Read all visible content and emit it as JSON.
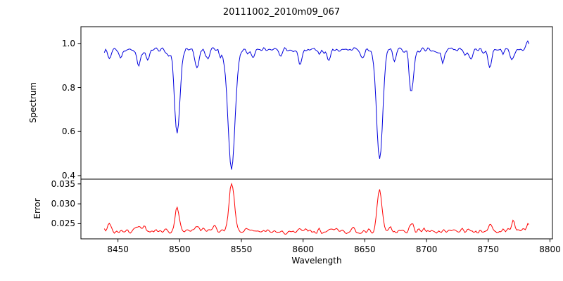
{
  "chart_data": {
    "type": "line",
    "title": "20111002_2010m09_067",
    "xlabel": "Wavelength",
    "xlim": [
      8420,
      8802
    ],
    "xticks": [
      8450,
      8500,
      8550,
      8600,
      8650,
      8700,
      8750,
      8800
    ],
    "x_start": 8439,
    "x_end": 8783,
    "x_step": 1,
    "panels": [
      {
        "name": "spectrum",
        "ylabel": "Spectrum",
        "color": "#0000dd",
        "ylim": [
          0.384,
          1.076
        ],
        "yticks": [
          0.4,
          0.6,
          0.8,
          1.0
        ],
        "ytick_labels": [
          "0.4",
          "0.6",
          "0.8",
          "1.0"
        ],
        "baseline": 0.972,
        "noise": 0.016,
        "features": [
          {
            "center": 8443,
            "depth": 0.045,
            "sigma": 1.2
          },
          {
            "center": 8452,
            "depth": 0.04,
            "sigma": 1.1
          },
          {
            "center": 8467,
            "depth": 0.08,
            "sigma": 1.4
          },
          {
            "center": 8474,
            "depth": 0.05,
            "sigma": 1.2
          },
          {
            "center": 8498,
            "depth": 0.39,
            "sigma": 2.0
          },
          {
            "center": 8514,
            "depth": 0.1,
            "sigma": 1.4
          },
          {
            "center": 8542,
            "depth": 0.57,
            "sigma": 2.8
          },
          {
            "center": 8560,
            "depth": 0.035,
            "sigma": 1.2
          },
          {
            "center": 8582,
            "depth": 0.04,
            "sigma": 1.2
          },
          {
            "center": 8598,
            "depth": 0.05,
            "sigma": 1.2
          },
          {
            "center": 8621,
            "depth": 0.04,
            "sigma": 1.2
          },
          {
            "center": 8648,
            "depth": 0.05,
            "sigma": 1.2
          },
          {
            "center": 8662,
            "depth": 0.52,
            "sigma": 2.4
          },
          {
            "center": 8674,
            "depth": 0.05,
            "sigma": 1.2
          },
          {
            "center": 8688,
            "depth": 0.19,
            "sigma": 1.5
          },
          {
            "center": 8713,
            "depth": 0.04,
            "sigma": 1.2
          },
          {
            "center": 8736,
            "depth": 0.04,
            "sigma": 1.2
          },
          {
            "center": 8751,
            "depth": 0.085,
            "sigma": 1.4
          },
          {
            "center": 8769,
            "depth": 0.06,
            "sigma": 1.2
          },
          {
            "center": 8782,
            "depth": -0.065,
            "sigma": 1.0
          }
        ]
      },
      {
        "name": "error",
        "ylabel": "Error",
        "color": "#ff0000",
        "ylim": [
          0.0212,
          0.0362
        ],
        "yticks": [
          0.025,
          0.03,
          0.035
        ],
        "ytick_labels": [
          "0.025",
          "0.030",
          "0.035"
        ],
        "baseline": 0.0232,
        "noise": 0.0009,
        "features": [
          {
            "center": 8443,
            "amp": 0.0022,
            "sigma": 1.3
          },
          {
            "center": 8467,
            "amp": 0.0014,
            "sigma": 1.4
          },
          {
            "center": 8498,
            "amp": 0.0062,
            "sigma": 1.7
          },
          {
            "center": 8514,
            "amp": 0.0012,
            "sigma": 1.3
          },
          {
            "center": 8542,
            "amp": 0.012,
            "sigma": 2.0
          },
          {
            "center": 8662,
            "amp": 0.0106,
            "sigma": 1.8
          },
          {
            "center": 8688,
            "amp": 0.0022,
            "sigma": 1.4
          },
          {
            "center": 8751,
            "amp": 0.0014,
            "sigma": 1.3
          },
          {
            "center": 8770,
            "amp": 0.003,
            "sigma": 1.2
          },
          {
            "center": 8782,
            "amp": 0.0022,
            "sigma": 1.0
          }
        ]
      }
    ]
  }
}
